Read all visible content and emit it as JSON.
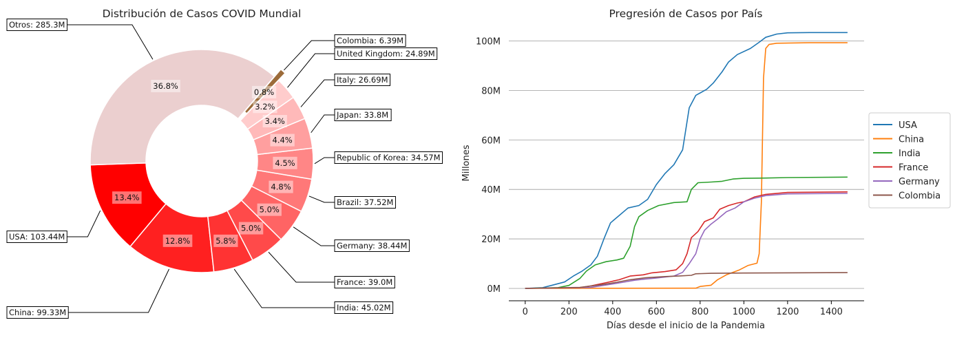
{
  "chart_data": [
    {
      "type": "pie",
      "variant": "donut",
      "title": "Distribución de Casos COVID Mundial",
      "slices": [
        {
          "label": "USA",
          "value": 103.44,
          "annotation": "USA: 103.44M",
          "pct": "13.4%",
          "color": "#ff0000"
        },
        {
          "label": "China",
          "value": 99.33,
          "annotation": "China: 99.33M",
          "pct": "12.8%",
          "color": "#ff2020"
        },
        {
          "label": "India",
          "value": 45.02,
          "annotation": "India: 45.02M",
          "pct": "5.8%",
          "color": "#ff3333"
        },
        {
          "label": "France",
          "value": 39.0,
          "annotation": "France: 39.0M",
          "pct": "5.0%",
          "color": "#ff4a4a"
        },
        {
          "label": "Germany",
          "value": 38.44,
          "annotation": "Germany: 38.44M",
          "pct": "5.0%",
          "color": "#ff6464"
        },
        {
          "label": "Brazil",
          "value": 37.52,
          "annotation": "Brazil: 37.52M",
          "pct": "4.8%",
          "color": "#ff7878"
        },
        {
          "label": "Republic of Korea",
          "value": 34.57,
          "annotation": "Republic of Korea: 34.57M",
          "pct": "4.5%",
          "color": "#ff8686"
        },
        {
          "label": "Japan",
          "value": 33.8,
          "annotation": "Japan: 33.8M",
          "pct": "4.4%",
          "color": "#ff9f9f"
        },
        {
          "label": "Italy",
          "value": 26.69,
          "annotation": "Italy: 26.69M",
          "pct": "3.4%",
          "color": "#ffb9b9"
        },
        {
          "label": "United Kingdom",
          "value": 24.89,
          "annotation": "United Kingdom: 24.89M",
          "pct": "3.2%",
          "color": "#ffcccc"
        },
        {
          "label": "Colombia",
          "value": 6.39,
          "annotation": "Colombia: 6.39M",
          "pct": "0.8%",
          "color": "#9c6b3a",
          "exploded": true
        },
        {
          "label": "Otros",
          "value": 285.3,
          "annotation": "Otros: 285.3M",
          "pct": "36.8%",
          "color": "#ebcfcf"
        }
      ]
    },
    {
      "type": "line",
      "title": "Pregresión de Casos por País",
      "xlabel": "Días desde el inicio de la Pandemia",
      "ylabel": "Millones",
      "xlim": [
        -75,
        1550
      ],
      "ylim": [
        -5,
        106
      ],
      "xticks": [
        0,
        200,
        400,
        600,
        800,
        1000,
        1200,
        1400
      ],
      "yticks": [
        0,
        20,
        40,
        60,
        80,
        100
      ],
      "ytick_labels": [
        "0M",
        "20M",
        "40M",
        "60M",
        "80M",
        "100M"
      ],
      "grid": "y",
      "legend": "right",
      "series": [
        {
          "name": "USA",
          "color": "#1f77b4",
          "points": [
            [
              0,
              0
            ],
            [
              80,
              0.3
            ],
            [
              120,
              1.2
            ],
            [
              180,
              2.6
            ],
            [
              220,
              5
            ],
            [
              260,
              7
            ],
            [
              300,
              9.5
            ],
            [
              330,
              13
            ],
            [
              360,
              20
            ],
            [
              390,
              26.5
            ],
            [
              430,
              29.5
            ],
            [
              470,
              32.5
            ],
            [
              520,
              33.5
            ],
            [
              560,
              36
            ],
            [
              600,
              42
            ],
            [
              640,
              46.5
            ],
            [
              680,
              50
            ],
            [
              720,
              56
            ],
            [
              750,
              73
            ],
            [
              780,
              78
            ],
            [
              830,
              80.5
            ],
            [
              860,
              83
            ],
            [
              900,
              87.5
            ],
            [
              930,
              91.5
            ],
            [
              970,
              94.5
            ],
            [
              1030,
              97
            ],
            [
              1070,
              99.5
            ],
            [
              1100,
              101.5
            ],
            [
              1150,
              102.8
            ],
            [
              1200,
              103.3
            ],
            [
              1300,
              103.4
            ],
            [
              1474,
              103.4
            ]
          ]
        },
        {
          "name": "China",
          "color": "#ff7f0e",
          "points": [
            [
              0,
              0
            ],
            [
              780,
              0.1
            ],
            [
              800,
              0.8
            ],
            [
              850,
              1.3
            ],
            [
              880,
              3.5
            ],
            [
              920,
              5.5
            ],
            [
              980,
              7.5
            ],
            [
              1020,
              9.3
            ],
            [
              1060,
              10.2
            ],
            [
              1070,
              14
            ],
            [
              1080,
              35
            ],
            [
              1090,
              85
            ],
            [
              1100,
              97
            ],
            [
              1115,
              98.6
            ],
            [
              1150,
              99.1
            ],
            [
              1300,
              99.3
            ],
            [
              1474,
              99.3
            ]
          ]
        },
        {
          "name": "India",
          "color": "#2ca02c",
          "points": [
            [
              0,
              0
            ],
            [
              150,
              0.3
            ],
            [
              200,
              1.2
            ],
            [
              250,
              4
            ],
            [
              280,
              7
            ],
            [
              320,
              9.5
            ],
            [
              370,
              10.8
            ],
            [
              420,
              11.5
            ],
            [
              450,
              12.2
            ],
            [
              480,
              17
            ],
            [
              500,
              25
            ],
            [
              520,
              29
            ],
            [
              560,
              31.5
            ],
            [
              610,
              33.5
            ],
            [
              680,
              34.7
            ],
            [
              740,
              35
            ],
            [
              760,
              40
            ],
            [
              790,
              42.7
            ],
            [
              850,
              43
            ],
            [
              900,
              43.3
            ],
            [
              950,
              44.2
            ],
            [
              1000,
              44.5
            ],
            [
              1100,
              44.6
            ],
            [
              1200,
              44.8
            ],
            [
              1474,
              45
            ]
          ]
        },
        {
          "name": "France",
          "color": "#d62728",
          "points": [
            [
              0,
              0
            ],
            [
              250,
              0.3
            ],
            [
              300,
              1
            ],
            [
              380,
              2.5
            ],
            [
              430,
              3.5
            ],
            [
              480,
              5
            ],
            [
              540,
              5.5
            ],
            [
              580,
              6.3
            ],
            [
              640,
              6.8
            ],
            [
              690,
              7.5
            ],
            [
              720,
              10
            ],
            [
              740,
              14
            ],
            [
              760,
              20.5
            ],
            [
              790,
              23
            ],
            [
              820,
              27
            ],
            [
              860,
              28.5
            ],
            [
              890,
              32
            ],
            [
              930,
              33.5
            ],
            [
              970,
              34.5
            ],
            [
              1000,
              35
            ],
            [
              1050,
              37
            ],
            [
              1100,
              38
            ],
            [
              1200,
              38.8
            ],
            [
              1474,
              39
            ]
          ]
        },
        {
          "name": "Germany",
          "color": "#9467bd",
          "points": [
            [
              0,
              0
            ],
            [
              300,
              0.4
            ],
            [
              400,
              1.8
            ],
            [
              450,
              2.5
            ],
            [
              500,
              3.3
            ],
            [
              550,
              3.8
            ],
            [
              600,
              4.2
            ],
            [
              680,
              5
            ],
            [
              720,
              6.5
            ],
            [
              750,
              10
            ],
            [
              780,
              14
            ],
            [
              800,
              20
            ],
            [
              820,
              23.5
            ],
            [
              850,
              26
            ],
            [
              880,
              28
            ],
            [
              920,
              31
            ],
            [
              960,
              32.5
            ],
            [
              1000,
              35
            ],
            [
              1050,
              36.5
            ],
            [
              1100,
              37.5
            ],
            [
              1200,
              38.2
            ],
            [
              1474,
              38.4
            ]
          ]
        },
        {
          "name": "Colombia",
          "color": "#8c564b",
          "points": [
            [
              0,
              0
            ],
            [
              250,
              0.4
            ],
            [
              350,
              1.5
            ],
            [
              420,
              2.5
            ],
            [
              480,
              3.5
            ],
            [
              550,
              4.3
            ],
            [
              640,
              4.8
            ],
            [
              700,
              5
            ],
            [
              760,
              5.3
            ],
            [
              780,
              5.9
            ],
            [
              850,
              6.1
            ],
            [
              1000,
              6.2
            ],
            [
              1200,
              6.3
            ],
            [
              1474,
              6.39
            ]
          ]
        }
      ]
    }
  ]
}
